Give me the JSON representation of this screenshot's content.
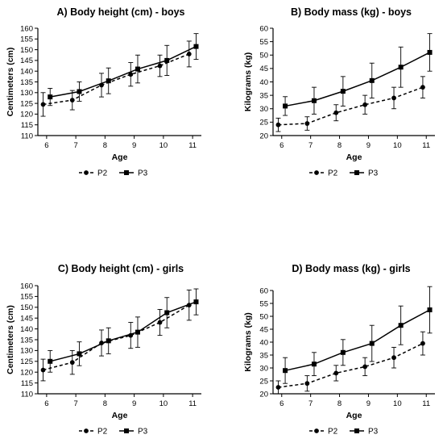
{
  "chart_data": [
    {
      "id": "A",
      "type": "line",
      "title": "A) Body height (cm) - boys",
      "xlabel": "Age",
      "ylabel": "Centimeters (cm)",
      "ylim": [
        110,
        160
      ],
      "yticks": [
        110,
        115,
        120,
        125,
        130,
        135,
        140,
        145,
        150,
        155,
        160
      ],
      "xlim": [
        5.7,
        11.3
      ],
      "xticks": [
        6,
        7,
        8,
        9,
        10,
        11
      ],
      "legend_position": "bottom",
      "series": [
        {
          "name": "P2",
          "style": "dashed",
          "marker": "circle",
          "x": [
            5.88,
            6.88,
            7.88,
            8.88,
            9.88,
            10.88
          ],
          "y": [
            124.5,
            126.5,
            133.5,
            138.5,
            142.5,
            148.0
          ],
          "err": [
            5.5,
            4.5,
            5.5,
            5.5,
            5.0,
            6.0
          ]
        },
        {
          "name": "P3",
          "style": "solid",
          "marker": "square",
          "x": [
            6.12,
            7.12,
            8.12,
            9.12,
            10.12,
            11.12
          ],
          "y": [
            128.0,
            130.5,
            135.5,
            141.0,
            145.0,
            151.5
          ],
          "err": [
            4.0,
            4.5,
            6.0,
            6.5,
            7.0,
            6.0
          ]
        }
      ]
    },
    {
      "id": "B",
      "type": "line",
      "title": "B) Body mass (kg) - boys",
      "xlabel": "Age",
      "ylabel": "Kilograms (kg)",
      "ylim": [
        20,
        60
      ],
      "yticks": [
        20,
        25,
        30,
        35,
        40,
        45,
        50,
        55,
        60
      ],
      "xlim": [
        5.7,
        11.3
      ],
      "xticks": [
        6,
        7,
        8,
        9,
        10,
        11
      ],
      "legend_position": "bottom",
      "series": [
        {
          "name": "P2",
          "style": "dashed",
          "marker": "circle",
          "x": [
            5.88,
            6.88,
            7.88,
            8.88,
            9.88,
            10.88
          ],
          "y": [
            24.0,
            24.5,
            28.5,
            31.5,
            34.0,
            38.0
          ],
          "err": [
            2.5,
            2.5,
            3.0,
            3.5,
            4.0,
            4.0
          ]
        },
        {
          "name": "P3",
          "style": "solid",
          "marker": "square",
          "x": [
            6.12,
            7.12,
            8.12,
            9.12,
            10.12,
            11.12
          ],
          "y": [
            31.0,
            33.0,
            36.5,
            40.5,
            45.5,
            51.0
          ],
          "err": [
            3.5,
            5.0,
            5.5,
            6.5,
            7.5,
            7.0
          ]
        }
      ]
    },
    {
      "id": "C",
      "type": "line",
      "title": "C) Body height (cm) - girls",
      "xlabel": "Age",
      "ylabel": "Centimeters (cm)",
      "ylim": [
        110,
        160
      ],
      "yticks": [
        110,
        115,
        120,
        125,
        130,
        135,
        140,
        145,
        150,
        155,
        160
      ],
      "xlim": [
        5.7,
        11.3
      ],
      "xticks": [
        6,
        7,
        8,
        9,
        10,
        11
      ],
      "legend_position": "bottom",
      "series": [
        {
          "name": "P2",
          "style": "dashed",
          "marker": "circle",
          "x": [
            5.88,
            6.88,
            7.88,
            8.88,
            9.88,
            10.88
          ],
          "y": [
            121.0,
            124.5,
            133.5,
            137.0,
            143.0,
            151.0
          ],
          "err": [
            5.0,
            5.5,
            6.0,
            6.0,
            6.0,
            7.0
          ]
        },
        {
          "name": "P3",
          "style": "solid",
          "marker": "square",
          "x": [
            6.12,
            7.12,
            8.12,
            9.12,
            10.12,
            11.12
          ],
          "y": [
            125.0,
            128.5,
            134.5,
            138.5,
            147.5,
            152.5
          ],
          "err": [
            5.0,
            5.5,
            6.0,
            7.0,
            7.0,
            6.0
          ]
        }
      ]
    },
    {
      "id": "D",
      "type": "line",
      "title": "D) Body mass (kg) - girls",
      "xlabel": "Age",
      "ylabel": "Kilograms (kg)",
      "ylim": [
        20,
        60
      ],
      "yticks": [
        20,
        25,
        30,
        35,
        40,
        45,
        50,
        55,
        60
      ],
      "xlim": [
        5.7,
        11.3
      ],
      "xticks": [
        6,
        7,
        8,
        9,
        10,
        11
      ],
      "legend_position": "bottom",
      "series": [
        {
          "name": "P2",
          "style": "dashed",
          "marker": "circle",
          "x": [
            5.88,
            6.88,
            7.88,
            8.88,
            9.88,
            10.88
          ],
          "y": [
            22.5,
            24.0,
            28.0,
            30.5,
            34.0,
            39.5
          ],
          "err": [
            2.5,
            3.0,
            3.0,
            3.5,
            4.0,
            4.5
          ]
        },
        {
          "name": "P3",
          "style": "solid",
          "marker": "square",
          "x": [
            6.12,
            7.12,
            8.12,
            9.12,
            10.12,
            11.12
          ],
          "y": [
            29.0,
            31.5,
            36.0,
            39.5,
            46.5,
            52.5
          ],
          "err": [
            5.0,
            4.5,
            5.0,
            7.0,
            7.5,
            9.0
          ]
        }
      ]
    }
  ]
}
